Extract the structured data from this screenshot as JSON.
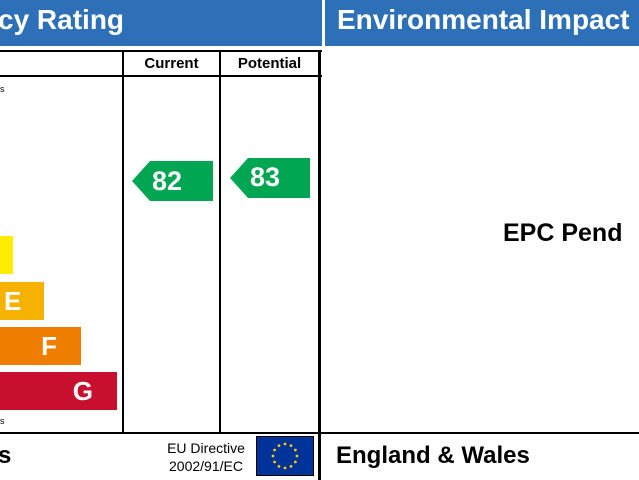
{
  "header": {
    "left_title": "cy Rating",
    "right_title": "Environmental Impact"
  },
  "columns": {
    "current": "Current",
    "potential": "Potential"
  },
  "left_panel": {
    "top_note": "s",
    "bottom_note": "s",
    "bands": [
      {
        "letter": "",
        "color": "#ffed00"
      },
      {
        "letter": "E",
        "color": "#f7b200"
      },
      {
        "letter": "F",
        "color": "#ef7d00"
      },
      {
        "letter": "G",
        "color": "#c8102e"
      }
    ]
  },
  "ratings": {
    "current": {
      "value": "82",
      "color": "#00a651"
    },
    "potential": {
      "value": "83",
      "color": "#00a651"
    }
  },
  "right_panel": {
    "status": "EPC Pend"
  },
  "footer": {
    "left_text": "s",
    "directive_line1": "EU Directive",
    "directive_line2": "2002/91/EC",
    "region": "England & Wales"
  },
  "flag": {
    "background": "#003399",
    "stars": "#ffcc00"
  }
}
